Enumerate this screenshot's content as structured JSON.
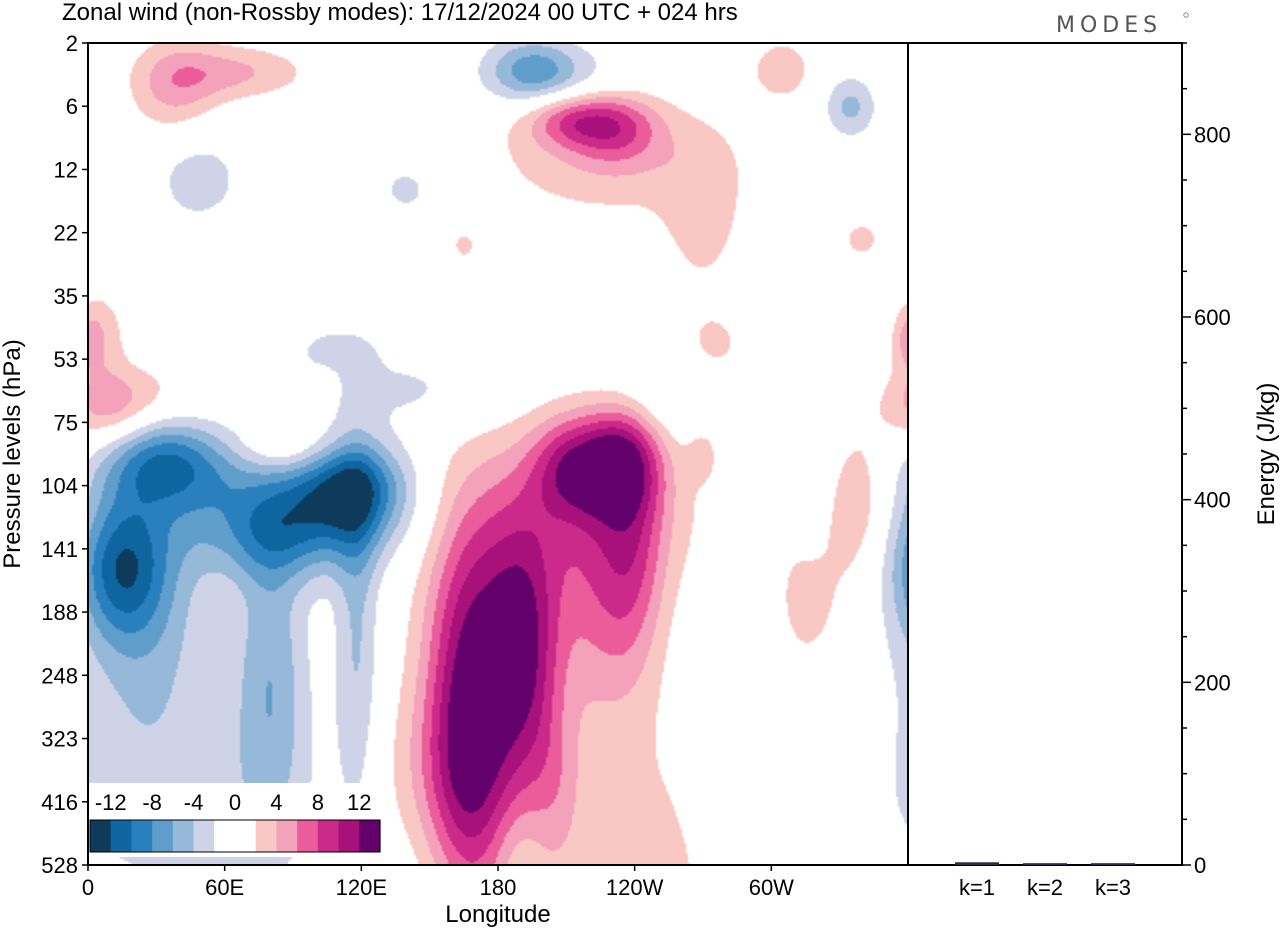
{
  "colors": {
    "neg": [
      "#0e3a5c",
      "#0f65a0",
      "#2a7fbd",
      "#5f9dcb",
      "#96b8d9",
      "#cfd3e8"
    ],
    "pos": [
      "#f9c8c4",
      "#f4a1bc",
      "#ea5c9a",
      "#cc2a8a",
      "#a8117a",
      "#63006b"
    ],
    "zero": "#ffffff"
  },
  "chart_data": [
    {
      "type": "heatmap",
      "title": "Zonal wind (non-Rossby modes):  17/12/2024  00 UTC  + 024 hrs",
      "xlabel": "Longitude",
      "ylabel": "Pressure levels (hPa)",
      "x_ticks": [
        "0",
        "60E",
        "120E",
        "180",
        "120W",
        "60W"
      ],
      "y_ticks": [
        "2",
        "6",
        "12",
        "22",
        "35",
        "53",
        "75",
        "104",
        "141",
        "188",
        "248",
        "323",
        "416",
        "528"
      ],
      "colorbar": {
        "labels": [
          "-12",
          "-8",
          "-4",
          "0",
          "4",
          "8",
          "12"
        ]
      },
      "blobs": [
        {
          "lon": 14,
          "lev": 8.3,
          "rx": 14,
          "ry": 0.8,
          "v": -8.5
        },
        {
          "lon": 25,
          "lev": 8.9,
          "rx": 20,
          "ry": 1.6,
          "v": -4.5
        },
        {
          "lon": 30,
          "lev": 6.5,
          "rx": 18,
          "ry": 0.55,
          "v": -6.2
        },
        {
          "lon": 50,
          "lev": 6.8,
          "rx": 24,
          "ry": 0.5,
          "v": -4.6
        },
        {
          "lon": 88,
          "lev": 7.7,
          "rx": 30,
          "ry": 0.55,
          "v": -8.2
        },
        {
          "lon": 114,
          "lev": 7.0,
          "rx": 18,
          "ry": 0.5,
          "v": -10.5
        },
        {
          "lon": 80,
          "lev": 9.9,
          "rx": 11,
          "ry": 1.8,
          "v": -5.2
        },
        {
          "lon": 118,
          "lev": 9.4,
          "rx": 7,
          "ry": 2.2,
          "v": -4.2
        },
        {
          "lon": 40,
          "lev": 12,
          "rx": 50,
          "ry": 1.4,
          "v": -2.6
        },
        {
          "lon": 100,
          "lev": 4.8,
          "rx": 22,
          "ry": 0.3,
          "v": -2.2
        },
        {
          "lon": 145,
          "lev": 5.5,
          "rx": 30,
          "ry": 0.45,
          "v": -2.3
        },
        {
          "lon": 195,
          "lev": 0.4,
          "rx": 14,
          "ry": 0.35,
          "v": -5.8
        },
        {
          "lon": 210,
          "lev": 0.6,
          "rx": 25,
          "ry": 0.4,
          "v": -2.8
        },
        {
          "lon": 250,
          "lev": 5.6,
          "rx": 16,
          "ry": 0.5,
          "v": -2.4
        },
        {
          "lon": 290,
          "lev": 9.8,
          "rx": 10,
          "ry": 1.8,
          "v": -2.1
        },
        {
          "lon": 325,
          "lev": 7.0,
          "rx": 10,
          "ry": 0.9,
          "v": -2.3
        },
        {
          "lon": 335,
          "lev": 1.0,
          "rx": 8,
          "ry": 0.35,
          "v": -4.6
        },
        {
          "lon": 48,
          "lev": 2.1,
          "rx": 15,
          "ry": 0.6,
          "v": -3.0
        },
        {
          "lon": 140,
          "lev": 2.3,
          "rx": 12,
          "ry": 0.4,
          "v": -2.5
        },
        {
          "lon": 70,
          "lev": 3.2,
          "rx": 12,
          "ry": 0.4,
          "v": -2.4
        },
        {
          "lon": 148,
          "lev": 13,
          "rx": 15,
          "ry": 1.2,
          "v": -2.6
        },
        {
          "lon": 188,
          "lev": 13,
          "rx": 8,
          "ry": 0.7,
          "v": -2.1
        },
        {
          "lon": 167,
          "lev": 10.6,
          "rx": 13,
          "ry": 1.9,
          "v": 10.2
        },
        {
          "lon": 192,
          "lev": 9.8,
          "rx": 11,
          "ry": 1.4,
          "v": 8.3
        },
        {
          "lon": 160,
          "lev": 11.9,
          "rx": 24,
          "ry": 1.2,
          "v": 5.4
        },
        {
          "lon": 182,
          "lev": 8.7,
          "rx": 22,
          "ry": 1.5,
          "v": 4.9
        },
        {
          "lon": 212,
          "lev": 6.7,
          "rx": 12,
          "ry": 0.55,
          "v": 7.2
        },
        {
          "lon": 234,
          "lev": 6.6,
          "rx": 12,
          "ry": 0.6,
          "v": 9.8
        },
        {
          "lon": 222,
          "lev": 7.4,
          "rx": 32,
          "ry": 1.0,
          "v": 4.6
        },
        {
          "lon": 240,
          "lev": 8.3,
          "rx": 10,
          "ry": 1.3,
          "v": 5.0
        },
        {
          "lon": 225,
          "lev": 8.9,
          "rx": 12,
          "ry": 1.3,
          "v": 3.9
        },
        {
          "lon": 212,
          "lev": 1.2,
          "rx": 14,
          "ry": 0.3,
          "v": 6.0
        },
        {
          "lon": 232,
          "lev": 1.3,
          "rx": 14,
          "ry": 0.4,
          "v": 6.1
        },
        {
          "lon": 230,
          "lev": 1.8,
          "rx": 40,
          "ry": 0.7,
          "v": 3.4
        },
        {
          "lon": 270,
          "lev": 2.8,
          "rx": 12,
          "ry": 0.8,
          "v": 2.8
        },
        {
          "lon": 182,
          "lev": 14.7,
          "rx": 55,
          "ry": 1.2,
          "v": 2.4
        },
        {
          "lon": 238,
          "lev": 12.9,
          "rx": 30,
          "ry": 1.9,
          "v": 2.6
        },
        {
          "lon": 205,
          "lev": 11.7,
          "rx": 8,
          "ry": 0.8,
          "v": 2.2
        },
        {
          "lon": 315,
          "lev": 8.8,
          "rx": 15,
          "ry": 1.0,
          "v": 2.8
        },
        {
          "lon": 335,
          "lev": 7.2,
          "rx": 10,
          "ry": 0.8,
          "v": 4.6
        },
        {
          "lon": 325,
          "lev": 14.3,
          "rx": 9,
          "ry": 0.8,
          "v": 2.5
        },
        {
          "lon": 200,
          "lev": 14.9,
          "rx": 12,
          "ry": 0.7,
          "v": 2.3
        },
        {
          "lon": 9,
          "lev": 5.8,
          "rx": 14,
          "ry": 0.45,
          "v": 4.6
        },
        {
          "lon": 27,
          "lev": 5.7,
          "rx": 20,
          "ry": 0.45,
          "v": 3.0
        },
        {
          "lon": 5,
          "lev": 4.6,
          "rx": 8,
          "ry": 0.5,
          "v": 3.3
        },
        {
          "lon": 38,
          "lev": 0.7,
          "rx": 14,
          "ry": 0.55,
          "v": 4.6
        },
        {
          "lon": 65,
          "lev": 0.45,
          "rx": 22,
          "ry": 0.3,
          "v": 4.1
        },
        {
          "lon": 85,
          "lev": 6.4,
          "rx": 14,
          "ry": 0.3,
          "v": 3.6
        },
        {
          "lon": 305,
          "lev": 0.4,
          "rx": 10,
          "ry": 0.35,
          "v": 3.3
        },
        {
          "lon": 340,
          "lev": 3.1,
          "rx": 10,
          "ry": 0.35,
          "v": 2.3
        },
        {
          "lon": 275,
          "lev": 4.8,
          "rx": 14,
          "ry": 0.5,
          "v": 2.3
        },
        {
          "lon": 88,
          "lev": 4.4,
          "rx": 6,
          "ry": 0.35,
          "v": 2.3
        },
        {
          "lon": 64,
          "lev": 3.1,
          "rx": 9,
          "ry": 0.3,
          "v": 2.4
        },
        {
          "lon": 165,
          "lev": 3.2,
          "rx": 6,
          "ry": 0.25,
          "v": 2.2
        },
        {
          "lon": 270,
          "lev": 6.5,
          "rx": 5,
          "ry": 0.3,
          "v": 2.3
        },
        {
          "lon": 360,
          "lev": 4.7,
          "rx": 4,
          "ry": 0.3,
          "v": 2.4
        }
      ]
    },
    {
      "type": "bar",
      "ylabel": "Energy (J/kg)",
      "categories": [
        "k=1",
        "k=2",
        "k=3"
      ],
      "values": [
        3,
        2,
        2
      ],
      "ylim": [
        0,
        900
      ],
      "y_ticks": [
        "0",
        "200",
        "400",
        "600",
        "800"
      ]
    }
  ],
  "logo": "MODES"
}
